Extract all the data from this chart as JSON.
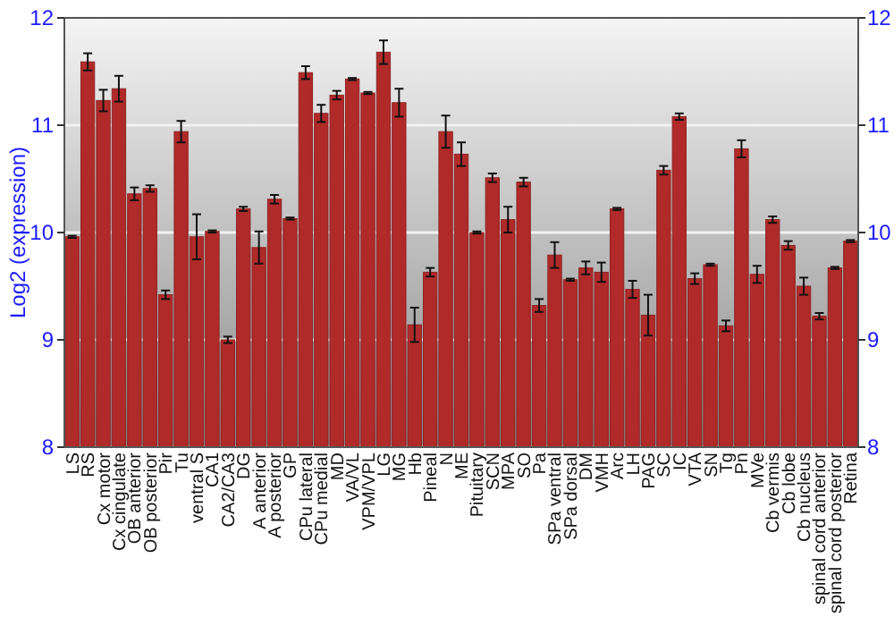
{
  "chart_data": {
    "type": "bar",
    "ylabel": "Log2 (expression)",
    "categories": [
      "LS",
      "RS",
      "Cx motor",
      "Cx cingulate",
      "OB anterior",
      "OB posterior",
      "Pir",
      "Tu",
      "ventral S",
      "CA1",
      "CA2/CA3",
      "DG",
      "A anterior",
      "A posterior",
      "GP",
      "CPu lateral",
      "CPu medial",
      "MD",
      "VA/VL",
      "VPM/VPL",
      "LG",
      "MG",
      "Hb",
      "Pineal",
      "N",
      "ME",
      "Pituitary",
      "SCN",
      "MPA",
      "SO",
      "Pa",
      "SPa ventral",
      "SPa dorsal",
      "DM",
      "VMH",
      "Arc",
      "LH",
      "PAG",
      "SC",
      "IC",
      "VTA",
      "SN",
      "Tg",
      "Pn",
      "MVe",
      "Cb vermis",
      "Cb lobe",
      "Cb nucleus",
      "spinal cord anterior",
      "spinal cord posterior",
      "Retina"
    ],
    "values": [
      9.96,
      11.59,
      11.23,
      11.34,
      10.36,
      10.41,
      9.42,
      10.94,
      9.96,
      10.01,
      9.0,
      10.22,
      9.86,
      10.31,
      10.13,
      11.49,
      11.11,
      11.28,
      11.43,
      11.3,
      11.68,
      11.21,
      9.14,
      9.63,
      10.94,
      10.73,
      10.0,
      10.51,
      10.12,
      10.47,
      9.32,
      9.79,
      9.56,
      9.67,
      9.63,
      10.22,
      9.47,
      9.23,
      10.58,
      11.08,
      9.57,
      9.7,
      9.13,
      10.78,
      9.61,
      10.12,
      9.88,
      9.5,
      9.22,
      9.67,
      9.92
    ],
    "errors": [
      0.01,
      0.08,
      0.1,
      0.12,
      0.06,
      0.03,
      0.04,
      0.1,
      0.21,
      0.01,
      0.03,
      0.02,
      0.15,
      0.04,
      0.01,
      0.06,
      0.08,
      0.04,
      0.01,
      0.01,
      0.11,
      0.13,
      0.16,
      0.04,
      0.15,
      0.11,
      0.01,
      0.04,
      0.12,
      0.04,
      0.06,
      0.12,
      0.01,
      0.06,
      0.09,
      0.01,
      0.08,
      0.19,
      0.04,
      0.03,
      0.05,
      0.01,
      0.05,
      0.08,
      0.08,
      0.03,
      0.04,
      0.08,
      0.03,
      0.01,
      0.01
    ],
    "color": "#b02a2a",
    "ylim": [
      8,
      12
    ],
    "yticks": [
      8,
      9,
      10,
      11,
      12
    ],
    "y2lim": [
      8,
      12
    ],
    "y2ticks": [
      8,
      9,
      10,
      11,
      12
    ],
    "grid": "y"
  }
}
